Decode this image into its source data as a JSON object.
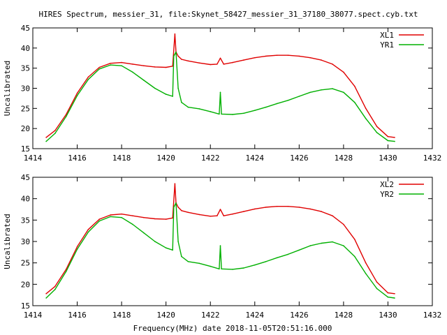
{
  "figure_title": "HIRES Spectrum, messier_31, file:Skynet_58427_messier_31_37180_38077.spect.cyb.txt",
  "x_axis_label": "Frequency(MHz) date 2018-11-05T20:51:16.000",
  "colors": {
    "XL": "#e00000",
    "YR": "#00b000"
  },
  "chart_data": [
    {
      "type": "line",
      "ylabel": "Uncalibrated",
      "xlabel": "",
      "xlim": [
        1414,
        1432
      ],
      "ylim": [
        15,
        45
      ],
      "xticks": [
        1414,
        1416,
        1418,
        1420,
        1422,
        1424,
        1426,
        1428,
        1430,
        1432
      ],
      "yticks": [
        15,
        20,
        25,
        30,
        35,
        40,
        45
      ],
      "grid": false,
      "legend": "top-right",
      "series": [
        {
          "name": "XL1",
          "color": "#e00000",
          "x": [
            1414.6,
            1415.0,
            1415.5,
            1416.0,
            1416.5,
            1417.0,
            1417.5,
            1418.0,
            1418.5,
            1419.0,
            1419.5,
            1420.0,
            1420.3,
            1420.4,
            1420.45,
            1420.55,
            1420.7,
            1421.0,
            1421.5,
            1422.0,
            1422.3,
            1422.45,
            1422.6,
            1423.0,
            1423.5,
            1424.0,
            1424.5,
            1425.0,
            1425.5,
            1426.0,
            1426.5,
            1427.0,
            1427.5,
            1428.0,
            1428.5,
            1429.0,
            1429.5,
            1430.0,
            1430.3
          ],
          "y": [
            17.8,
            19.5,
            23.5,
            28.8,
            32.8,
            35.2,
            36.2,
            36.4,
            36.0,
            35.6,
            35.3,
            35.2,
            35.5,
            43.5,
            39.0,
            38.0,
            37.2,
            36.8,
            36.3,
            35.9,
            36.0,
            37.5,
            36.0,
            36.4,
            37.0,
            37.6,
            38.0,
            38.2,
            38.2,
            38.0,
            37.6,
            37.0,
            36.0,
            34.0,
            30.5,
            25.0,
            20.5,
            18.0,
            17.8
          ]
        },
        {
          "name": "YR1",
          "color": "#00b000",
          "x": [
            1414.6,
            1415.0,
            1415.5,
            1416.0,
            1416.5,
            1417.0,
            1417.5,
            1418.0,
            1418.5,
            1419.0,
            1419.5,
            1420.0,
            1420.3,
            1420.35,
            1420.45,
            1420.55,
            1420.7,
            1421.0,
            1421.5,
            1422.0,
            1422.4,
            1422.45,
            1422.5,
            1423.0,
            1423.5,
            1424.0,
            1424.5,
            1425.0,
            1425.5,
            1426.0,
            1426.5,
            1427.0,
            1427.5,
            1428.0,
            1428.5,
            1429.0,
            1429.5,
            1430.0,
            1430.3
          ],
          "y": [
            16.8,
            18.8,
            23.0,
            28.2,
            32.2,
            34.8,
            35.8,
            35.6,
            34.0,
            32.0,
            30.0,
            28.5,
            28.0,
            38.0,
            39.0,
            30.0,
            26.5,
            25.3,
            24.9,
            24.2,
            23.6,
            29.0,
            23.6,
            23.5,
            23.8,
            24.5,
            25.3,
            26.2,
            27.0,
            28.0,
            29.0,
            29.6,
            29.9,
            29.0,
            26.5,
            22.5,
            19.0,
            17.0,
            16.8
          ]
        }
      ]
    },
    {
      "type": "line",
      "ylabel": "Uncalibrated",
      "xlabel": "",
      "xlim": [
        1414,
        1432
      ],
      "ylim": [
        15,
        45
      ],
      "xticks": [
        1414,
        1416,
        1418,
        1420,
        1422,
        1424,
        1426,
        1428,
        1430,
        1432
      ],
      "yticks": [
        15,
        20,
        25,
        30,
        35,
        40,
        45
      ],
      "grid": false,
      "legend": "top-right",
      "series": [
        {
          "name": "XL2",
          "color": "#e00000",
          "x": [
            1414.6,
            1415.0,
            1415.5,
            1416.0,
            1416.5,
            1417.0,
            1417.5,
            1418.0,
            1418.5,
            1419.0,
            1419.5,
            1420.0,
            1420.3,
            1420.4,
            1420.45,
            1420.55,
            1420.7,
            1421.0,
            1421.5,
            1422.0,
            1422.3,
            1422.45,
            1422.6,
            1423.0,
            1423.5,
            1424.0,
            1424.5,
            1425.0,
            1425.5,
            1426.0,
            1426.5,
            1427.0,
            1427.5,
            1428.0,
            1428.5,
            1429.0,
            1429.5,
            1430.0,
            1430.3
          ],
          "y": [
            17.8,
            19.5,
            23.5,
            28.8,
            32.8,
            35.2,
            36.2,
            36.4,
            36.0,
            35.6,
            35.3,
            35.2,
            35.5,
            43.5,
            39.0,
            38.0,
            37.2,
            36.8,
            36.3,
            35.9,
            36.0,
            37.5,
            36.0,
            36.4,
            37.0,
            37.6,
            38.0,
            38.2,
            38.2,
            38.0,
            37.6,
            37.0,
            36.0,
            34.0,
            30.5,
            25.0,
            20.5,
            18.0,
            17.8
          ]
        },
        {
          "name": "YR2",
          "color": "#00b000",
          "x": [
            1414.6,
            1415.0,
            1415.5,
            1416.0,
            1416.5,
            1417.0,
            1417.5,
            1418.0,
            1418.5,
            1419.0,
            1419.5,
            1420.0,
            1420.3,
            1420.35,
            1420.45,
            1420.55,
            1420.7,
            1421.0,
            1421.5,
            1422.0,
            1422.4,
            1422.45,
            1422.5,
            1423.0,
            1423.5,
            1424.0,
            1424.5,
            1425.0,
            1425.5,
            1426.0,
            1426.5,
            1427.0,
            1427.5,
            1428.0,
            1428.5,
            1429.0,
            1429.5,
            1430.0,
            1430.3
          ],
          "y": [
            16.8,
            18.8,
            23.0,
            28.2,
            32.2,
            34.8,
            35.8,
            35.6,
            34.0,
            32.0,
            30.0,
            28.5,
            28.0,
            38.0,
            39.0,
            30.0,
            26.5,
            25.3,
            24.9,
            24.2,
            23.6,
            29.0,
            23.6,
            23.5,
            23.8,
            24.5,
            25.3,
            26.2,
            27.0,
            28.0,
            29.0,
            29.6,
            29.9,
            29.0,
            26.5,
            22.5,
            19.0,
            17.0,
            16.8
          ]
        }
      ]
    }
  ]
}
